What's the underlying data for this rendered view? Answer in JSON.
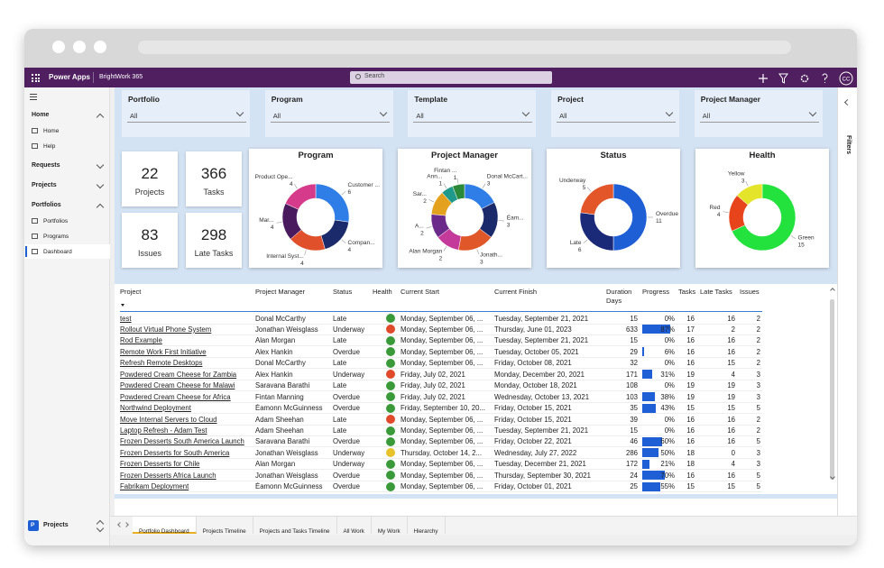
{
  "app": {
    "launcher": "Power Apps",
    "environment": "BrightWork 365",
    "search": "Search",
    "user": "CC"
  },
  "nav": {
    "groups": [
      {
        "label": "Home",
        "expanded": true,
        "items": [
          {
            "label": "Home"
          },
          {
            "label": "Help"
          }
        ]
      },
      {
        "label": "Requests",
        "expanded": false,
        "items": []
      },
      {
        "label": "Projects",
        "expanded": false,
        "items": []
      },
      {
        "label": "Portfolios",
        "expanded": true,
        "items": [
          {
            "label": "Portfolios"
          },
          {
            "label": "Programs"
          },
          {
            "label": "Dashboard",
            "selected": true
          }
        ]
      }
    ],
    "area": {
      "badge": "P",
      "label": "Projects"
    }
  },
  "filters": {
    "pane": "Filters",
    "fields": [
      {
        "label": "Portfolio",
        "value": "All"
      },
      {
        "label": "Program",
        "value": "All"
      },
      {
        "label": "Template",
        "value": "All"
      },
      {
        "label": "Project",
        "value": "All"
      },
      {
        "label": "Project Manager",
        "value": "All"
      }
    ]
  },
  "kpis": [
    {
      "value": 22,
      "label": "Projects"
    },
    {
      "value": 366,
      "label": "Tasks"
    },
    {
      "value": 83,
      "label": "Issues"
    },
    {
      "value": 298,
      "label": "Late Tasks"
    }
  ],
  "charts": [
    {
      "type": "donut",
      "title": "Program",
      "segments": [
        {
          "name": "Customer ...",
          "value": 6,
          "color": "#2f7de6"
        },
        {
          "name": "Compan...",
          "value": 4,
          "color": "#1b2a6b"
        },
        {
          "name": "Internal Syst...",
          "value": 4,
          "color": "#e0502a"
        },
        {
          "name": "Mar...",
          "value": 4,
          "color": "#4a1a5e"
        },
        {
          "name": "Product Ope...",
          "value": 4,
          "color": "#d63a8a"
        }
      ]
    },
    {
      "type": "donut",
      "title": "Project Manager",
      "segments": [
        {
          "name": "Donal McCart...",
          "value": 3,
          "color": "#2f7de6"
        },
        {
          "name": "Éam...",
          "value": 3,
          "color": "#1b2a6b"
        },
        {
          "name": "Jonath...",
          "value": 3,
          "color": "#e0572a"
        },
        {
          "name": "Alan Morgan",
          "value": 2,
          "color": "#c43a9a"
        },
        {
          "name": "A...",
          "value": 2,
          "color": "#6b2a8a"
        },
        {
          "name": "Sar...",
          "value": 2,
          "color": "#e4a11e"
        },
        {
          "name": "Ann...",
          "value": 1,
          "color": "#1f9a8a"
        },
        {
          "name": "Fintan ...",
          "value": 1,
          "color": "#2a8a3a"
        }
      ]
    },
    {
      "type": "donut",
      "title": "Status",
      "segments": [
        {
          "name": "Overdue",
          "value": 11,
          "color": "#1f5fd6"
        },
        {
          "name": "Late",
          "value": 6,
          "color": "#1b2a78"
        },
        {
          "name": "Underway",
          "value": 5,
          "color": "#e2562a"
        }
      ]
    },
    {
      "type": "donut",
      "title": "Health",
      "segments": [
        {
          "name": "Green",
          "value": 15,
          "color": "#23e23e"
        },
        {
          "name": "Red",
          "value": 4,
          "color": "#e8441c"
        },
        {
          "name": "Yellow",
          "value": 3,
          "color": "#e4e42a"
        }
      ]
    }
  ],
  "table": {
    "columns": [
      "Project",
      "Project Manager",
      "Status",
      "Health",
      "Current Start",
      "Current Finish",
      "Duration Days",
      "Progress",
      "Tasks",
      "Late Tasks",
      "Issues"
    ],
    "rows": [
      [
        "test",
        "Donal McCarthy",
        "Late",
        "#3a9a3a",
        "Monday, September 06, ...",
        "Tuesday, September 21, 2021",
        15,
        "0%",
        16,
        16,
        2
      ],
      [
        "Rollout Virtual Phone System",
        "Jonathan Weisglass",
        "Underway",
        "#e04a2a",
        "Monday, September 06, ...",
        "Thursday, June 01, 2023",
        633,
        "87%",
        17,
        2,
        2
      ],
      [
        "Rod Example",
        "Alan Morgan",
        "Late",
        "#3a9a3a",
        "Monday, September 06, ...",
        "Tuesday, September 21, 2021",
        15,
        "0%",
        16,
        16,
        2
      ],
      [
        "Remote Work First Initiative",
        "Alex Hankin",
        "Overdue",
        "#3a9a3a",
        "Monday, September 06, ...",
        "Tuesday, October 05, 2021",
        29,
        "6%",
        16,
        16,
        2
      ],
      [
        "Refresh Remote Desktops",
        "Donal McCarthy",
        "Late",
        "#3a9a3a",
        "Monday, September 06, ...",
        "Friday, October 08, 2021",
        32,
        "0%",
        16,
        15,
        2
      ],
      [
        "Powdered Cream Cheese for Zambia",
        "Alex Hankin",
        "Underway",
        "#e04a2a",
        "Friday, July 02, 2021",
        "Monday, December 20, 2021",
        171,
        "31%",
        19,
        4,
        3
      ],
      [
        "Powdered Cream Cheese for Malawi",
        "Saravana Barathi",
        "Late",
        "#3a9a3a",
        "Friday, July 02, 2021",
        "Monday, October 18, 2021",
        108,
        "0%",
        19,
        19,
        3
      ],
      [
        "Powdered Cream Cheese for Africa",
        "Fintan Manning",
        "Overdue",
        "#3a9a3a",
        "Friday, July 02, 2021",
        "Wednesday, October 13, 2021",
        103,
        "38%",
        19,
        19,
        3
      ],
      [
        "Northwind Deployment",
        "Éamonn McGuinness",
        "Overdue",
        "#3a9a3a",
        "Friday, September 10, 20...",
        "Friday, October 15, 2021",
        35,
        "43%",
        15,
        15,
        5
      ],
      [
        "Move Internal Servers to Cloud",
        "Adam Sheehan",
        "Late",
        "#e04a2a",
        "Monday, September 06, ...",
        "Friday, October 15, 2021",
        39,
        "0%",
        16,
        16,
        2
      ],
      [
        "Laptop Refresh - Adam Test",
        "Adam Sheehan",
        "Late",
        "#3a9a3a",
        "Monday, September 06, ...",
        "Tuesday, September 21, 2021",
        15,
        "0%",
        16,
        16,
        2
      ],
      [
        "Frozen Desserts South America Launch",
        "Saravana Barathi",
        "Overdue",
        "#3a9a3a",
        "Monday, September 06, ...",
        "Friday, October 22, 2021",
        46,
        "60%",
        16,
        16,
        5
      ],
      [
        "Frozen Desserts for South America",
        "Jonathan Weisglass",
        "Underway",
        "#e8c22a",
        "Thursday, October 14, 2...",
        "Wednesday, July 27, 2022",
        286,
        "50%",
        18,
        0,
        3
      ],
      [
        "Frozen Desserts for Chile",
        "Alan Morgan",
        "Underway",
        "#3a9a3a",
        "Monday, September 06, ...",
        "Tuesday, December 21, 2021",
        172,
        "21%",
        18,
        4,
        3
      ],
      [
        "Frozen Desserts Africa Launch",
        "Jonathan Weisglass",
        "Overdue",
        "#3a9a3a",
        "Monday, September 06, ...",
        "Thursday, September 30, 2021",
        24,
        "70%",
        16,
        16,
        5
      ],
      [
        "Fabrikam Deployment",
        "Éamonn McGuinness",
        "Overdue",
        "#3a9a3a",
        "Monday, September 06, ...",
        "Friday, October 01, 2021",
        25,
        "55%",
        15,
        15,
        5
      ]
    ]
  },
  "tabs": [
    {
      "label": "Portfolio Dashboard",
      "active": true
    },
    {
      "label": "Projects Timeline"
    },
    {
      "label": "Projects and Tasks Timeline"
    },
    {
      "label": "All Work"
    },
    {
      "label": "My Work"
    },
    {
      "label": "Hierarchy"
    }
  ]
}
